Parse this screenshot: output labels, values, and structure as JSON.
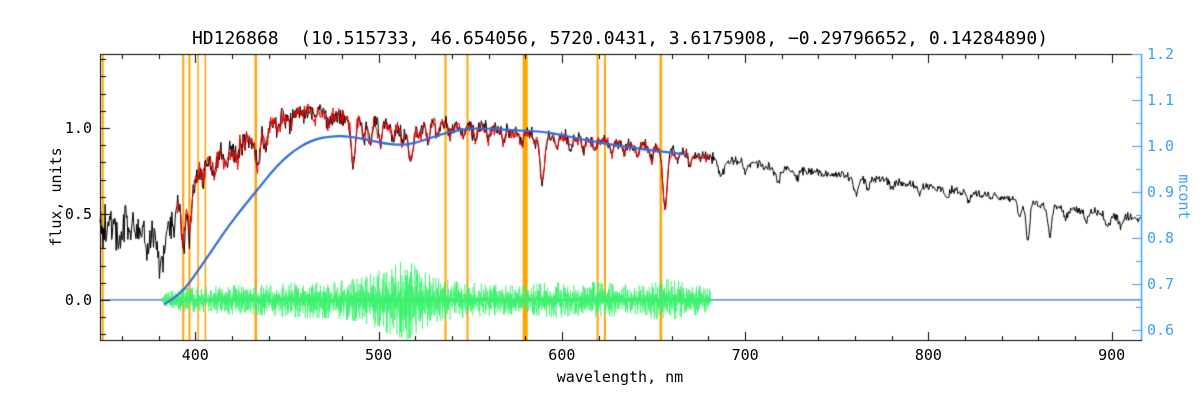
{
  "chart_data": {
    "type": "line",
    "title": "HD126868  (10.515733, 46.654056, 5720.0431, 3.6175908, −0.29796652, 0.14284890)",
    "xlabel": "wavelength, nm",
    "ylabel_left": "flux, units",
    "ylabel_right": "mcont",
    "background": "#ffffff",
    "grid": false,
    "x_axis": {
      "range": [
        348,
        916
      ],
      "ticks": [
        400,
        500,
        600,
        700,
        800,
        900
      ],
      "tick_labels": [
        "400",
        "500",
        "600",
        "700",
        "800",
        "900"
      ],
      "minor_step": 20
    },
    "y_axis_left": {
      "range": [
        -0.233,
        1.43
      ],
      "ticks": [
        0.0,
        0.5,
        1.0
      ],
      "tick_labels": [
        "0.0",
        "0.5",
        "1.0"
      ],
      "minor_step": 0.1
    },
    "y_axis_right": {
      "range": [
        0.578,
        1.2
      ],
      "ticks": [
        0.6,
        0.7,
        0.8,
        0.9,
        1.0,
        1.1,
        1.2
      ],
      "tick_labels": [
        "0.6",
        "0.7",
        "0.8",
        "0.9",
        "1.0",
        "1.1",
        "1.2"
      ],
      "minor_step": 0.05
    },
    "colors": {
      "spectrum": "#000000",
      "fit": "#E60000",
      "continuum": "#2E6FD8",
      "residual": "#3DF26F",
      "marker": "#FFA500",
      "axis_right": "#3D9FFF",
      "frame": "#000000"
    },
    "orange_markers": [
      {
        "wavelength": 349.5,
        "line_width": 2
      },
      {
        "wavelength": 393.4,
        "line_width": 2
      },
      {
        "wavelength": 396.8,
        "line_width": 2
      },
      {
        "wavelength": 401.5,
        "line_width": 1.5
      },
      {
        "wavelength": 405.5,
        "line_width": 1.5
      },
      {
        "wavelength": 433.0,
        "line_width": 2.5
      },
      {
        "wavelength": 536.5,
        "line_width": 2
      },
      {
        "wavelength": 548.5,
        "line_width": 2
      },
      {
        "wavelength": 580.0,
        "line_width": 5
      },
      {
        "wavelength": 619.5,
        "line_width": 2
      },
      {
        "wavelength": 623.5,
        "line_width": 2
      },
      {
        "wavelength": 654.0,
        "line_width": 2.5
      }
    ],
    "series": [
      {
        "role": "observed_spectrum",
        "label": "observed spectrum",
        "color": "#000000",
        "axis": "left",
        "x_range": [
          348,
          916
        ]
      },
      {
        "role": "fitted_spectrum",
        "label": "fitted spectrum",
        "color": "#E60000",
        "axis": "left",
        "x_range": [
          389.5,
          680.5
        ]
      },
      {
        "role": "continuum",
        "label": "continuum (mcont)",
        "color": "#2E6FD8",
        "axis": "right",
        "points": [
          [
            383,
            0.655
          ],
          [
            388,
            0.668
          ],
          [
            394,
            0.688
          ],
          [
            400,
            0.72
          ],
          [
            406,
            0.755
          ],
          [
            412,
            0.79
          ],
          [
            418,
            0.825
          ],
          [
            424,
            0.856
          ],
          [
            430,
            0.886
          ],
          [
            436,
            0.915
          ],
          [
            442,
            0.945
          ],
          [
            448,
            0.97
          ],
          [
            454,
            0.99
          ],
          [
            460,
            1.005
          ],
          [
            466,
            1.015
          ],
          [
            472,
            1.02
          ],
          [
            480,
            1.022
          ],
          [
            488,
            1.018
          ],
          [
            496,
            1.012
          ],
          [
            504,
            1.005
          ],
          [
            512,
            1.002
          ],
          [
            520,
            1.006
          ],
          [
            530,
            1.02
          ],
          [
            540,
            1.032
          ],
          [
            550,
            1.038
          ],
          [
            560,
            1.038
          ],
          [
            570,
            1.035
          ],
          [
            580,
            1.033
          ],
          [
            590,
            1.031
          ],
          [
            600,
            1.024
          ],
          [
            610,
            1.015
          ],
          [
            620,
            1.008
          ],
          [
            630,
            1.001
          ],
          [
            640,
            0.995
          ],
          [
            650,
            0.99
          ],
          [
            660,
            0.985
          ],
          [
            668,
            0.982
          ]
        ]
      },
      {
        "role": "residuals",
        "label": "fit residuals",
        "color": "#3DF26F",
        "axis": "left",
        "center": 0.0,
        "x_range": [
          382,
          681
        ],
        "amplitude_profile": [
          [
            382,
            0.015
          ],
          [
            390,
            0.03
          ],
          [
            400,
            0.035
          ],
          [
            415,
            0.04
          ],
          [
            430,
            0.04
          ],
          [
            445,
            0.045
          ],
          [
            460,
            0.05
          ],
          [
            475,
            0.05
          ],
          [
            490,
            0.06
          ],
          [
            500,
            0.08
          ],
          [
            508,
            0.1
          ],
          [
            516,
            0.11
          ],
          [
            524,
            0.08
          ],
          [
            532,
            0.06
          ],
          [
            545,
            0.05
          ],
          [
            558,
            0.045
          ],
          [
            570,
            0.04
          ],
          [
            582,
            0.04
          ],
          [
            594,
            0.05
          ],
          [
            606,
            0.045
          ],
          [
            618,
            0.05
          ],
          [
            630,
            0.045
          ],
          [
            642,
            0.04
          ],
          [
            655,
            0.06
          ],
          [
            665,
            0.05
          ],
          [
            675,
            0.04
          ],
          [
            681,
            0.03
          ]
        ]
      },
      {
        "role": "zero_line",
        "label": "zero level",
        "color": "#2E6FD8",
        "axis": "left",
        "y": 0.0,
        "x_range": [
          348,
          916
        ]
      }
    ],
    "spectrum_envelope": [
      [
        348,
        0.44
      ],
      [
        354,
        0.46
      ],
      [
        360,
        0.43
      ],
      [
        366,
        0.46
      ],
      [
        372,
        0.42
      ],
      [
        378,
        0.41
      ],
      [
        384,
        0.47
      ],
      [
        390,
        0.58
      ],
      [
        396,
        0.66
      ],
      [
        402,
        0.76
      ],
      [
        408,
        0.82
      ],
      [
        414,
        0.85
      ],
      [
        420,
        0.88
      ],
      [
        426,
        0.91
      ],
      [
        432,
        0.94
      ],
      [
        438,
        0.99
      ],
      [
        444,
        1.04
      ],
      [
        450,
        1.07
      ],
      [
        456,
        1.1
      ],
      [
        462,
        1.1
      ],
      [
        468,
        1.09
      ],
      [
        474,
        1.07
      ],
      [
        480,
        1.06
      ],
      [
        486,
        1.06
      ],
      [
        492,
        1.04
      ],
      [
        498,
        1.02
      ],
      [
        504,
        1.01
      ],
      [
        510,
        1.0
      ],
      [
        516,
        1.0
      ],
      [
        522,
        1.01
      ],
      [
        528,
        1.04
      ],
      [
        534,
        1.03
      ],
      [
        540,
        1.02
      ],
      [
        546,
        1.01
      ],
      [
        552,
        1.0
      ],
      [
        558,
        1.0
      ],
      [
        564,
        0.99
      ],
      [
        570,
        0.98
      ],
      [
        576,
        0.97
      ],
      [
        582,
        0.97
      ],
      [
        588,
        0.96
      ],
      [
        596,
        0.955
      ],
      [
        604,
        0.945
      ],
      [
        612,
        0.935
      ],
      [
        620,
        0.925
      ],
      [
        628,
        0.915
      ],
      [
        636,
        0.905
      ],
      [
        644,
        0.895
      ],
      [
        652,
        0.88
      ],
      [
        660,
        0.865
      ],
      [
        668,
        0.85
      ],
      [
        676,
        0.835
      ],
      [
        684,
        0.82
      ],
      [
        692,
        0.81
      ],
      [
        700,
        0.8
      ],
      [
        712,
        0.78
      ],
      [
        724,
        0.76
      ],
      [
        736,
        0.745
      ],
      [
        748,
        0.73
      ],
      [
        760,
        0.715
      ],
      [
        772,
        0.7
      ],
      [
        784,
        0.68
      ],
      [
        796,
        0.665
      ],
      [
        808,
        0.645
      ],
      [
        820,
        0.625
      ],
      [
        832,
        0.605
      ],
      [
        844,
        0.585
      ],
      [
        856,
        0.565
      ],
      [
        868,
        0.55
      ],
      [
        880,
        0.525
      ],
      [
        892,
        0.505
      ],
      [
        904,
        0.485
      ],
      [
        916,
        0.47
      ]
    ],
    "absorption_lines": [
      [
        358,
        0.1,
        1.5
      ],
      [
        367,
        0.08,
        1.2
      ],
      [
        374.5,
        0.12,
        1.5
      ],
      [
        381.5,
        0.22,
        1.8
      ],
      [
        388,
        0.12,
        1.2
      ],
      [
        393.4,
        0.3,
        1.1
      ],
      [
        396.9,
        0.28,
        1.1
      ],
      [
        404,
        0.1,
        0.9
      ],
      [
        410.2,
        0.14,
        1.0
      ],
      [
        417,
        0.08,
        0.9
      ],
      [
        422.7,
        0.1,
        0.9
      ],
      [
        434,
        0.2,
        1.1
      ],
      [
        438.5,
        0.1,
        0.9
      ],
      [
        445,
        0.07,
        0.8
      ],
      [
        452,
        0.06,
        0.8
      ],
      [
        465,
        0.06,
        0.8
      ],
      [
        473,
        0.07,
        0.8
      ],
      [
        486.1,
        0.28,
        1.1
      ],
      [
        492,
        0.1,
        0.8
      ],
      [
        495.5,
        0.12,
        0.8
      ],
      [
        501,
        0.1,
        0.8
      ],
      [
        508,
        0.08,
        0.8
      ],
      [
        513,
        0.09,
        0.8
      ],
      [
        517.5,
        0.2,
        1.3
      ],
      [
        522,
        0.08,
        0.8
      ],
      [
        527,
        0.12,
        0.9
      ],
      [
        532,
        0.08,
        0.8
      ],
      [
        539,
        0.07,
        0.8
      ],
      [
        546,
        0.06,
        0.8
      ],
      [
        552.5,
        0.07,
        0.8
      ],
      [
        560,
        0.06,
        0.8
      ],
      [
        568,
        0.07,
        0.8
      ],
      [
        578,
        0.06,
        0.8
      ],
      [
        585,
        0.06,
        0.8
      ],
      [
        589.3,
        0.28,
        1.2
      ],
      [
        597,
        0.06,
        0.8
      ],
      [
        605,
        0.06,
        0.8
      ],
      [
        612,
        0.07,
        0.8
      ],
      [
        618,
        0.06,
        0.8
      ],
      [
        627,
        0.08,
        0.9
      ],
      [
        634,
        0.06,
        0.8
      ],
      [
        641,
        0.06,
        0.8
      ],
      [
        649,
        0.07,
        0.8
      ],
      [
        656.3,
        0.34,
        1.2
      ],
      [
        663,
        0.05,
        0.8
      ],
      [
        670,
        0.06,
        0.8
      ],
      [
        687,
        0.1,
        1.3
      ],
      [
        700,
        0.05,
        1.0
      ],
      [
        718,
        0.07,
        1.6
      ],
      [
        728,
        0.05,
        1.2
      ],
      [
        760.5,
        0.1,
        1.3
      ],
      [
        766.8,
        0.06,
        1.0
      ],
      [
        780,
        0.04,
        1.0
      ],
      [
        795,
        0.04,
        1.0
      ],
      [
        810,
        0.04,
        1.0
      ],
      [
        822,
        0.05,
        1.2
      ],
      [
        849.8,
        0.1,
        0.9
      ],
      [
        854.2,
        0.22,
        1.1
      ],
      [
        866.2,
        0.18,
        1.1
      ],
      [
        875,
        0.06,
        1.0
      ],
      [
        886,
        0.06,
        1.0
      ],
      [
        898,
        0.08,
        1.2
      ],
      [
        905,
        0.05,
        1.0
      ]
    ],
    "noise_profile": [
      [
        348,
        0.065
      ],
      [
        370,
        0.06
      ],
      [
        385,
        0.05
      ],
      [
        400,
        0.04
      ],
      [
        430,
        0.035
      ],
      [
        460,
        0.03
      ],
      [
        500,
        0.028
      ],
      [
        540,
        0.022
      ],
      [
        580,
        0.02
      ],
      [
        620,
        0.018
      ],
      [
        660,
        0.016
      ],
      [
        700,
        0.014
      ],
      [
        750,
        0.012
      ],
      [
        800,
        0.012
      ],
      [
        850,
        0.012
      ],
      [
        916,
        0.012
      ]
    ]
  }
}
